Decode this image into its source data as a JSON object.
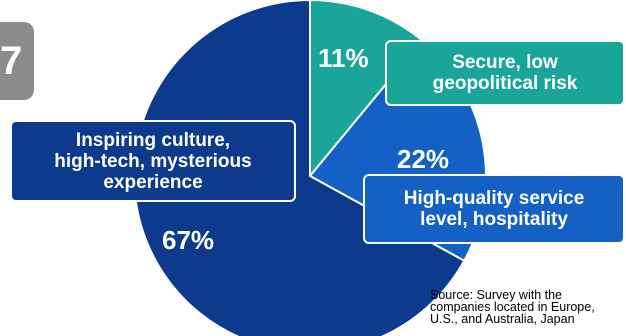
{
  "marker": {
    "text": "7"
  },
  "chart_data": {
    "type": "pie",
    "slices": [
      {
        "label": "Secure, low\ngeopolitical risk",
        "value": 11,
        "display": "11%",
        "color": "#1aa59a"
      },
      {
        "label": "High-quality service\nlevel, hospitality",
        "value": 22,
        "display": "22%",
        "color": "#1560c4"
      },
      {
        "label": "Inspiring culture,\nhigh-tech, mysterious\nexperience",
        "value": 67,
        "display": "67%",
        "color": "#0d3a8c"
      }
    ]
  },
  "source": "Source: Survey with the\ncompanies located in Europe,\nU.S., and Australia, Japan"
}
